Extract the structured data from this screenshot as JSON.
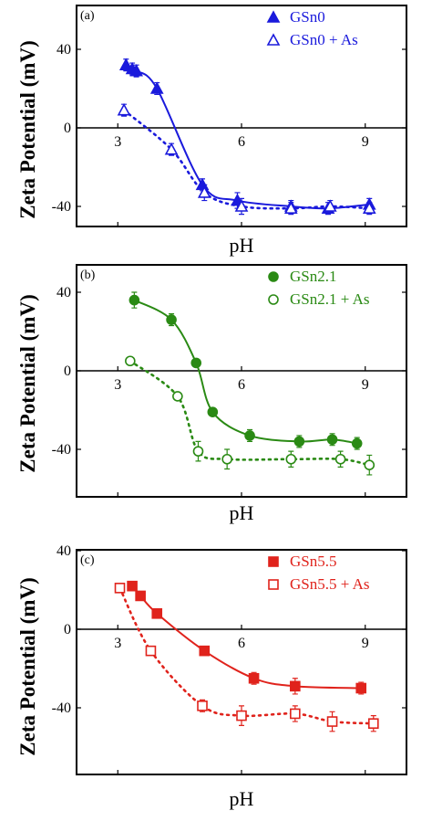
{
  "y_axis_title": "Zeta Potential (mV)",
  "chart_data": [
    {
      "type": "scatter",
      "panel_label": "(a)",
      "xlabel": "pH",
      "ylabel": "Zeta Potential (mV)",
      "xlim": [
        2,
        10
      ],
      "ylim": [
        -50,
        50
      ],
      "x_ticks": [
        3,
        6,
        9
      ],
      "y_ticks": [
        40,
        0,
        -40
      ],
      "color": "#1a1adc",
      "legend_position": "top-right",
      "series": [
        {
          "name": "GSn0",
          "marker": "filled-triangle",
          "fit": "solid",
          "x": [
            3.2,
            3.35,
            3.45,
            3.95,
            5.05,
            5.9,
            7.2,
            8.1,
            9.1
          ],
          "y": [
            32,
            30,
            29,
            20,
            -29,
            -37,
            -40,
            -41,
            -39
          ],
          "err": [
            3,
            3,
            3,
            3,
            3,
            4,
            3,
            3,
            3
          ]
        },
        {
          "name": "GSn0 + As",
          "marker": "open-triangle",
          "fit": "dotted",
          "x": [
            3.15,
            4.3,
            5.1,
            6.0,
            7.2,
            8.15,
            9.1
          ],
          "y": [
            9,
            -11,
            -33,
            -40,
            -41,
            -40,
            -41
          ],
          "err": [
            3,
            3,
            4,
            4,
            3,
            3,
            3
          ]
        }
      ]
    },
    {
      "type": "scatter",
      "panel_label": "(b)",
      "xlabel": "pH",
      "ylabel": "Zeta Potential (mV)",
      "xlim": [
        2,
        10
      ],
      "ylim": [
        -60,
        50
      ],
      "x_ticks": [
        3,
        6,
        9
      ],
      "y_ticks": [
        40,
        0,
        -40
      ],
      "color": "#2a8a14",
      "legend_position": "top-right",
      "series": [
        {
          "name": "GSn2.1",
          "marker": "filled-circle",
          "fit": "solid",
          "x": [
            3.4,
            4.3,
            4.9,
            5.3,
            6.2,
            7.4,
            8.2,
            8.8
          ],
          "y": [
            36,
            26,
            4,
            -21,
            -33,
            -36,
            -35,
            -37
          ],
          "err": [
            4,
            3,
            2,
            2,
            3,
            3,
            3,
            3
          ]
        },
        {
          "name": "GSn2.1 + As",
          "marker": "open-circle",
          "fit": "dotted",
          "x": [
            3.3,
            4.45,
            4.95,
            5.65,
            7.2,
            8.4,
            9.1
          ],
          "y": [
            5,
            -13,
            -41,
            -45,
            -45,
            -45,
            -48
          ],
          "err": [
            2,
            2,
            5,
            5,
            4,
            4,
            5
          ]
        }
      ]
    },
    {
      "type": "scatter",
      "panel_label": "(c)",
      "xlabel": "pH",
      "ylabel": "Zeta Potential (mV)",
      "xlim": [
        2,
        10
      ],
      "ylim": [
        -60,
        50
      ],
      "x_ticks": [
        3,
        6,
        9
      ],
      "y_ticks": [
        40,
        0,
        -40
      ],
      "color": "#e0231c",
      "legend_position": "top-right",
      "series": [
        {
          "name": "GSn5.5",
          "marker": "filled-square",
          "fit": "solid",
          "x": [
            3.35,
            3.55,
            3.95,
            5.1,
            6.3,
            7.3,
            8.9
          ],
          "y": [
            22,
            17,
            8,
            -11,
            -25,
            -29,
            -30
          ],
          "err": [
            2,
            2,
            2,
            2,
            3,
            4,
            3
          ]
        },
        {
          "name": "GSn5.5 + As",
          "marker": "open-square",
          "fit": "dotted",
          "x": [
            3.05,
            3.8,
            5.05,
            6.0,
            7.3,
            8.2,
            9.2
          ],
          "y": [
            21,
            -11,
            -39,
            -44,
            -43,
            -47,
            -48
          ],
          "err": [
            2,
            2,
            3,
            5,
            4,
            5,
            4
          ]
        }
      ]
    }
  ]
}
